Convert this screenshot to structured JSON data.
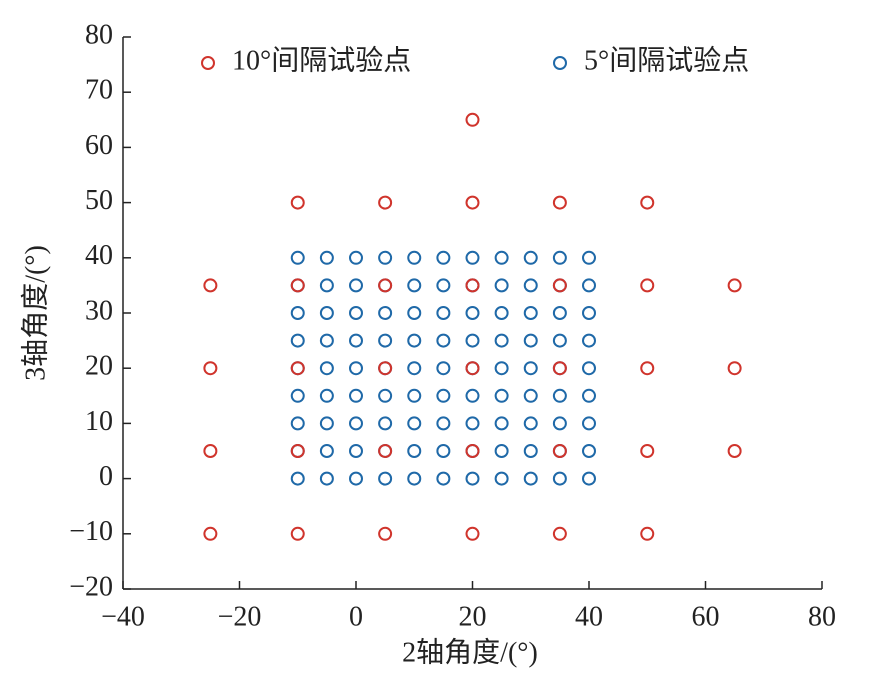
{
  "chart_data": {
    "type": "scatter",
    "xlabel": "2轴角度/(°)",
    "ylabel": "3轴角度/(°)",
    "xlim": [
      -40,
      80
    ],
    "xticks": [
      {
        "value": -40,
        "label": "−40"
      },
      {
        "value": -20,
        "label": "−20"
      },
      0,
      20,
      40,
      60,
      80
    ],
    "ylim": [
      -20,
      80
    ],
    "yticks": [
      {
        "value": -20,
        "label": "−20"
      },
      {
        "value": -10,
        "label": "−10"
      },
      0,
      10,
      20,
      30,
      40,
      50,
      60,
      70,
      80
    ],
    "legend": "top",
    "series": [
      {
        "name": "10°间隔试验点",
        "color": "#d0342c",
        "x": [
          20,
          -10,
          5,
          20,
          35,
          50,
          -25,
          -10,
          5,
          20,
          35,
          50,
          65,
          -25,
          -10,
          5,
          20,
          35,
          50,
          65,
          -25,
          -10,
          5,
          20,
          35,
          50,
          65,
          -25,
          -10,
          5,
          20,
          35,
          50
        ],
        "y": [
          65,
          50,
          50,
          50,
          50,
          50,
          35,
          35,
          35,
          35,
          35,
          35,
          35,
          20,
          20,
          20,
          20,
          20,
          20,
          20,
          5,
          5,
          5,
          5,
          5,
          5,
          5,
          -10,
          -10,
          -10,
          -10,
          -10,
          -10
        ]
      },
      {
        "name": "5°间隔试验点",
        "color": "#1f69a8",
        "x": [
          -10,
          -5,
          0,
          5,
          10,
          15,
          20,
          25,
          30,
          35,
          40,
          -10,
          -5,
          0,
          5,
          10,
          15,
          20,
          25,
          30,
          35,
          40,
          -10,
          -5,
          0,
          5,
          10,
          15,
          20,
          25,
          30,
          35,
          40,
          -10,
          -5,
          0,
          5,
          10,
          15,
          20,
          25,
          30,
          35,
          40,
          -10,
          -5,
          0,
          5,
          10,
          15,
          20,
          25,
          30,
          35,
          40,
          -10,
          -5,
          0,
          5,
          10,
          15,
          20,
          25,
          30,
          35,
          40,
          -10,
          -5,
          0,
          5,
          10,
          15,
          20,
          25,
          30,
          35,
          40,
          -10,
          -5,
          0,
          5,
          10,
          15,
          20,
          25,
          30,
          35,
          40,
          -10,
          -5,
          0,
          5,
          10,
          15,
          20,
          25,
          30,
          35,
          40
        ],
        "y": [
          40,
          40,
          40,
          40,
          40,
          40,
          40,
          40,
          40,
          40,
          40,
          35,
          35,
          35,
          35,
          35,
          35,
          35,
          35,
          35,
          35,
          35,
          30,
          30,
          30,
          30,
          30,
          30,
          30,
          30,
          30,
          30,
          30,
          25,
          25,
          25,
          25,
          25,
          25,
          25,
          25,
          25,
          25,
          25,
          20,
          20,
          20,
          20,
          20,
          20,
          20,
          20,
          20,
          20,
          20,
          15,
          15,
          15,
          15,
          15,
          15,
          15,
          15,
          15,
          15,
          15,
          10,
          10,
          10,
          10,
          10,
          10,
          10,
          10,
          10,
          10,
          10,
          5,
          5,
          5,
          5,
          5,
          5,
          5,
          5,
          5,
          5,
          5,
          0,
          0,
          0,
          0,
          0,
          0,
          0,
          0,
          0,
          0,
          0
        ]
      }
    ]
  }
}
